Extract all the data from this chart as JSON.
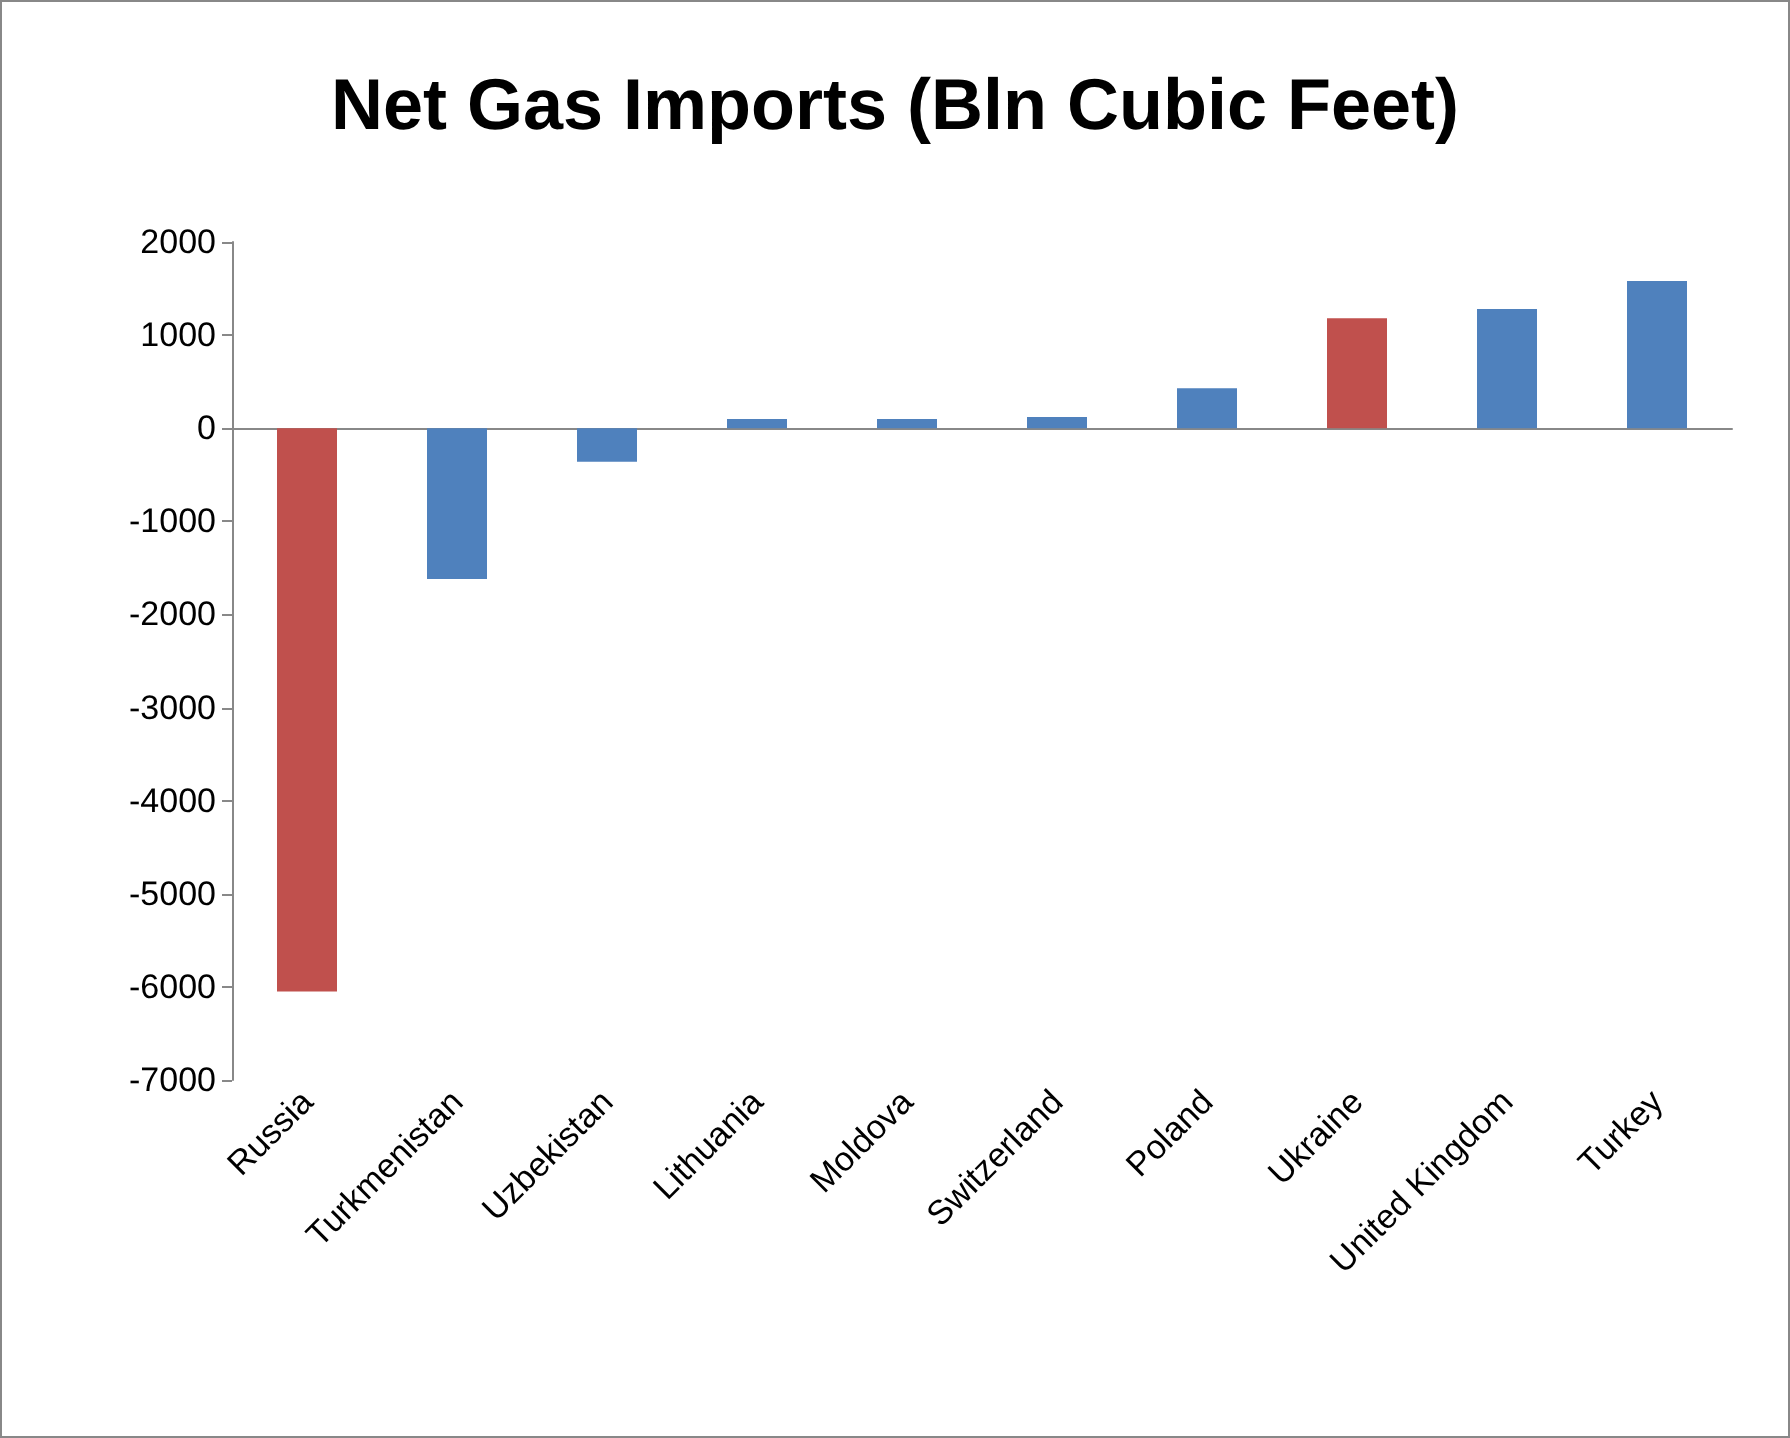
{
  "chart_data": {
    "type": "bar",
    "title": "Net Gas Imports (Bln Cubic Feet)",
    "categories": [
      "Russia",
      "Turkmenistan",
      "Uzbekistan",
      "Lithuania",
      "Moldova",
      "Switzerland",
      "Poland",
      "Ukraine",
      "United Kingdom",
      "Turkey"
    ],
    "values": [
      -6050,
      -1620,
      -360,
      100,
      100,
      120,
      430,
      1180,
      1280,
      1580
    ],
    "colors": [
      "#c0504d",
      "#4f81bd",
      "#4f81bd",
      "#4f81bd",
      "#4f81bd",
      "#4f81bd",
      "#4f81bd",
      "#c0504d",
      "#4f81bd",
      "#4f81bd"
    ],
    "ylim": [
      -7000,
      2000
    ],
    "yticks": [
      -7000,
      -6000,
      -5000,
      -4000,
      -3000,
      -2000,
      -1000,
      0,
      1000,
      2000
    ]
  }
}
